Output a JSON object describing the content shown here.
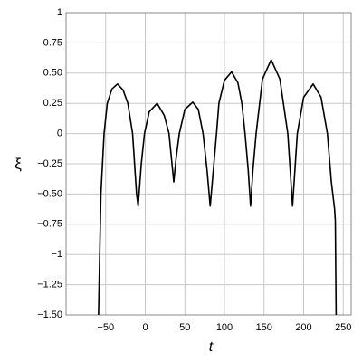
{
  "chart_data": {
    "type": "line",
    "x_label": "t",
    "y_label": "ξ",
    "x": [
      -59,
      -56,
      -52,
      -48,
      -42,
      -35,
      -28,
      -22,
      -16,
      -11,
      -9,
      -5,
      -1,
      5,
      15,
      24,
      30,
      36,
      39,
      43,
      50,
      60,
      67,
      73,
      78,
      82,
      86,
      90,
      93,
      100,
      109,
      117,
      122,
      126,
      130,
      133,
      136,
      140,
      148,
      159,
      170,
      180,
      184,
      186,
      189,
      192,
      200,
      212,
      222,
      230,
      235,
      239,
      240,
      241
    ],
    "series": [
      {
        "name": "ξ",
        "color": "#000000",
        "values": [
          -1.5,
          -0.5,
          0,
          0.25,
          0.37,
          0.41,
          0.36,
          0.25,
          0,
          -0.5,
          -0.6,
          -0.25,
          0,
          0.18,
          0.25,
          0.15,
          0,
          -0.4,
          -0.2,
          0,
          0.2,
          0.26,
          0.2,
          0,
          -0.3,
          -0.6,
          -0.3,
          0,
          0.25,
          0.44,
          0.51,
          0.42,
          0.25,
          0,
          -0.3,
          -0.6,
          -0.3,
          0,
          0.45,
          0.61,
          0.45,
          0,
          -0.4,
          -0.6,
          -0.3,
          0,
          0.3,
          0.41,
          0.3,
          0,
          -0.4,
          -0.62,
          -0.72,
          -1.5
        ]
      }
    ],
    "xlim": [
      -100,
      260
    ],
    "ylim": [
      -1.5,
      1
    ],
    "xticks": [
      {
        "value": -50,
        "label": "−50"
      },
      0,
      50,
      100,
      150,
      200,
      250
    ],
    "yticks": [
      {
        "value": -1.5,
        "label": "−1.50"
      },
      {
        "value": -1.25,
        "label": "−1.25"
      },
      {
        "value": -1,
        "label": "−1"
      },
      {
        "value": -0.75,
        "label": "−0.75"
      },
      {
        "value": -0.5,
        "label": "−0.50"
      },
      {
        "value": -0.25,
        "label": "−0.25"
      },
      0,
      0.25,
      {
        "value": 0.5,
        "label": "0.50"
      },
      0.75,
      1
    ],
    "grid": true
  }
}
